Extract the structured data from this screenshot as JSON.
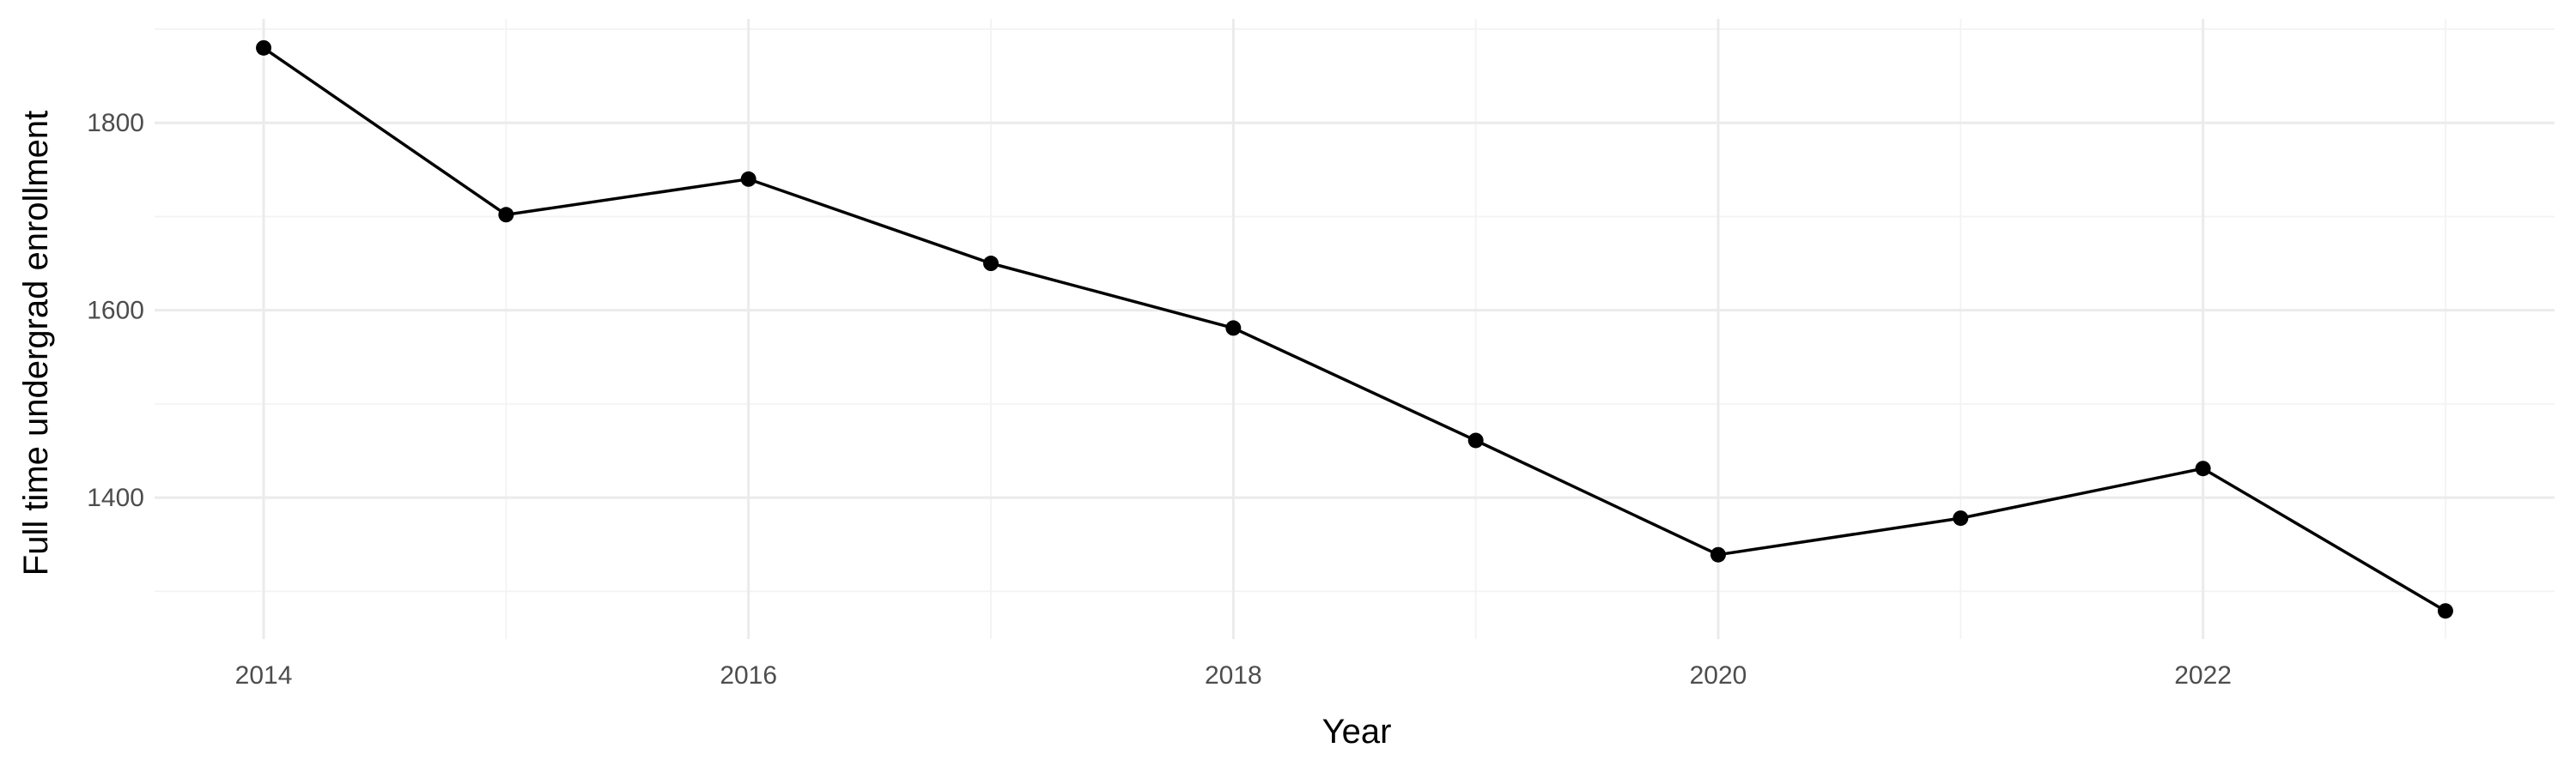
{
  "chart_data": {
    "type": "line",
    "title": "",
    "xlabel": "Year",
    "ylabel": "Full time undergrad enrollment",
    "x": [
      2014,
      2015,
      2016,
      2017,
      2018,
      2019,
      2020,
      2021,
      2022,
      2023
    ],
    "series": [
      {
        "values": [
          1880,
          1702,
          1740,
          1650,
          1581,
          1461,
          1339,
          1378,
          1431,
          1279
        ]
      }
    ],
    "xlim": [
      2013.55,
      2023.45
    ],
    "ylim": [
      1249,
      1911
    ],
    "x_ticks": [
      2014,
      2016,
      2018,
      2020,
      2022
    ],
    "x_tick_labels": [
      "2014",
      "2016",
      "2018",
      "2020",
      "2022"
    ],
    "y_ticks": [
      1400,
      1600,
      1800
    ],
    "y_tick_labels": [
      "1400",
      "1600",
      "1800"
    ],
    "grid": true,
    "legend": "none",
    "colors": {
      "series": "#000000",
      "grid": "#ebebeb",
      "background": "#ffffff"
    }
  }
}
